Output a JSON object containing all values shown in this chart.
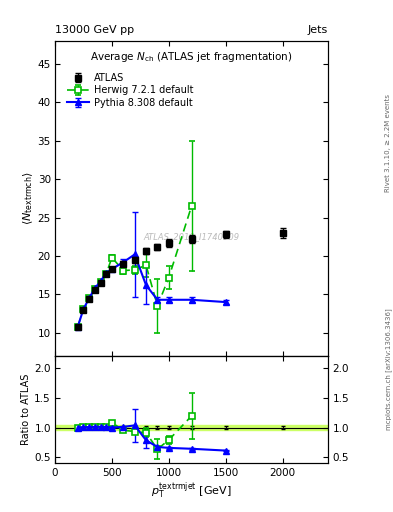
{
  "atlas_x": [
    200,
    250,
    300,
    350,
    400,
    450,
    500,
    600,
    700,
    800,
    900,
    1000,
    1200,
    1500,
    2000
  ],
  "atlas_y": [
    10.8,
    13.0,
    14.4,
    15.6,
    16.5,
    17.6,
    18.3,
    19.0,
    19.5,
    20.6,
    21.2,
    21.7,
    22.2,
    22.8,
    23.0
  ],
  "atlas_yerr": [
    0.25,
    0.25,
    0.25,
    0.25,
    0.25,
    0.25,
    0.3,
    0.3,
    0.35,
    0.4,
    0.4,
    0.5,
    0.5,
    0.5,
    0.6
  ],
  "herwig_x": [
    200,
    250,
    300,
    350,
    400,
    450,
    500,
    600,
    700,
    800,
    900,
    1000,
    1200
  ],
  "herwig_y": [
    10.8,
    13.1,
    14.5,
    15.7,
    16.6,
    17.7,
    19.8,
    18.1,
    18.2,
    18.8,
    13.5,
    17.2,
    26.5
  ],
  "herwig_yerr_lo": [
    0.2,
    0.2,
    0.2,
    0.2,
    0.2,
    0.2,
    0.3,
    0.4,
    0.5,
    1.5,
    3.5,
    1.5,
    8.5
  ],
  "herwig_yerr_hi": [
    0.2,
    0.2,
    0.2,
    0.2,
    0.2,
    0.2,
    0.3,
    0.4,
    0.5,
    1.5,
    3.5,
    1.5,
    8.5
  ],
  "pythia_x": [
    200,
    250,
    300,
    350,
    400,
    450,
    500,
    600,
    700,
    800,
    900,
    1000,
    1200,
    1500
  ],
  "pythia_y": [
    10.8,
    13.1,
    14.5,
    15.8,
    16.7,
    17.8,
    18.3,
    19.2,
    20.2,
    16.2,
    14.3,
    14.3,
    14.3,
    14.0
  ],
  "pythia_yerr_lo": [
    0.2,
    0.2,
    0.2,
    0.2,
    0.2,
    0.2,
    0.3,
    0.4,
    5.5,
    2.5,
    0.3,
    0.3,
    0.3,
    0.3
  ],
  "pythia_yerr_hi": [
    0.2,
    0.2,
    0.2,
    0.2,
    0.2,
    0.2,
    0.3,
    0.4,
    5.5,
    2.5,
    0.3,
    0.3,
    0.3,
    0.3
  ],
  "ylim_main": [
    7,
    48
  ],
  "ylim_ratio": [
    0.4,
    2.2
  ],
  "xlim": [
    0,
    2400
  ],
  "atlas_color": "black",
  "herwig_color": "#00bb00",
  "pythia_color": "blue",
  "band_color": "#ccff66",
  "band_ylo": 0.96,
  "band_yhi": 1.04,
  "yticks_main": [
    10,
    15,
    20,
    25,
    30,
    35,
    40,
    45
  ],
  "xticks": [
    0,
    500,
    1000,
    1500,
    2000
  ],
  "yticks_ratio": [
    0.5,
    1.0,
    1.5,
    2.0
  ]
}
